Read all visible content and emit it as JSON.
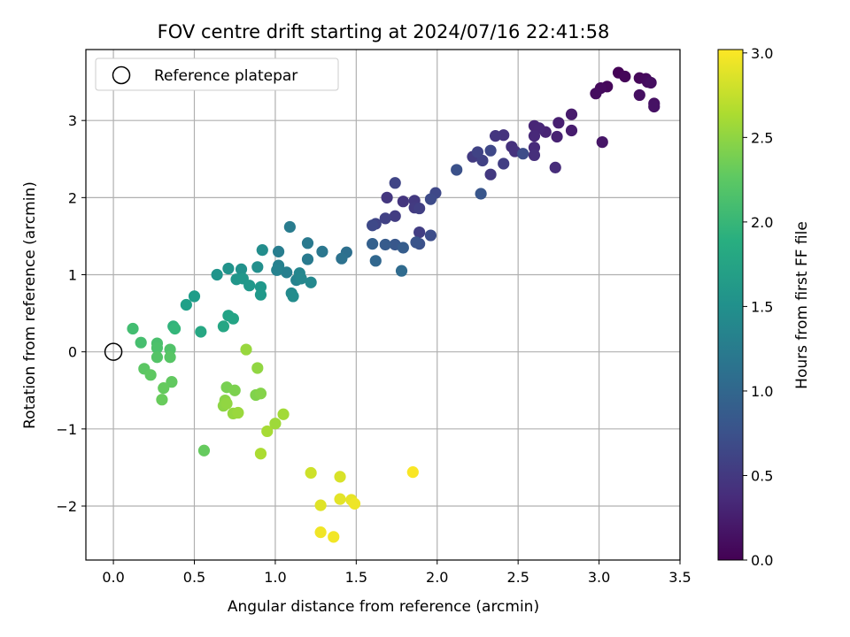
{
  "chart_data": {
    "type": "scatter",
    "title": "FOV centre drift starting at 2024/07/16 22:41:58",
    "xlabel": "Angular distance from reference (arcmin)",
    "ylabel": "Rotation from reference (arcmin)",
    "xlim": [
      -0.17,
      3.5
    ],
    "ylim": [
      -2.7,
      3.92
    ],
    "xticks": [
      0.0,
      0.5,
      1.0,
      1.5,
      2.0,
      2.5,
      3.0,
      3.5
    ],
    "xtick_labels": [
      "0.0",
      "0.5",
      "1.0",
      "1.5",
      "2.0",
      "2.5",
      "3.0",
      "3.5"
    ],
    "yticks": [
      -2,
      -1,
      0,
      1,
      2,
      3
    ],
    "ytick_labels": [
      "−2",
      "−1",
      "0",
      "1",
      "2",
      "3"
    ],
    "grid": true,
    "colormap": "viridis",
    "colorbar": {
      "label": "Hours from first FF file",
      "range": [
        0.0,
        3.02
      ],
      "ticks": [
        0.0,
        0.5,
        1.0,
        1.5,
        2.0,
        2.5,
        3.0
      ],
      "tick_labels": [
        "0.0",
        "0.5",
        "1.0",
        "1.5",
        "2.0",
        "2.5",
        "3.0"
      ]
    },
    "reference": {
      "name": "Reference platepar",
      "x": 0.0,
      "y": 0.0
    },
    "legend": {
      "placement": "top-left"
    },
    "points": [
      {
        "x": 3.12,
        "y": 3.62,
        "c": 0.02
      },
      {
        "x": 3.16,
        "y": 3.57,
        "c": 0.04
      },
      {
        "x": 3.05,
        "y": 3.44,
        "c": 0.06
      },
      {
        "x": 3.01,
        "y": 3.42,
        "c": 0.08
      },
      {
        "x": 2.98,
        "y": 3.35,
        "c": 0.1
      },
      {
        "x": 3.25,
        "y": 3.55,
        "c": 0.05
      },
      {
        "x": 3.29,
        "y": 3.54,
        "c": 0.07
      },
      {
        "x": 3.3,
        "y": 3.5,
        "c": 0.09
      },
      {
        "x": 3.32,
        "y": 3.49,
        "c": 0.11
      },
      {
        "x": 3.25,
        "y": 3.33,
        "c": 0.12
      },
      {
        "x": 3.34,
        "y": 3.22,
        "c": 0.14
      },
      {
        "x": 3.34,
        "y": 3.18,
        "c": 0.15
      },
      {
        "x": 3.02,
        "y": 2.72,
        "c": 0.18
      },
      {
        "x": 2.83,
        "y": 3.08,
        "c": 0.22
      },
      {
        "x": 2.83,
        "y": 2.87,
        "c": 0.24
      },
      {
        "x": 2.75,
        "y": 2.97,
        "c": 0.26
      },
      {
        "x": 2.74,
        "y": 2.79,
        "c": 0.28
      },
      {
        "x": 2.67,
        "y": 2.85,
        "c": 0.3
      },
      {
        "x": 2.6,
        "y": 2.93,
        "c": 0.32
      },
      {
        "x": 2.63,
        "y": 2.9,
        "c": 0.33
      },
      {
        "x": 2.6,
        "y": 2.8,
        "c": 0.35
      },
      {
        "x": 2.6,
        "y": 2.65,
        "c": 0.37
      },
      {
        "x": 2.73,
        "y": 2.39,
        "c": 0.38
      },
      {
        "x": 2.6,
        "y": 2.55,
        "c": 0.4
      },
      {
        "x": 2.46,
        "y": 2.66,
        "c": 0.42
      },
      {
        "x": 2.48,
        "y": 2.6,
        "c": 0.43
      },
      {
        "x": 2.41,
        "y": 2.81,
        "c": 0.45
      },
      {
        "x": 2.36,
        "y": 2.8,
        "c": 0.47
      },
      {
        "x": 2.33,
        "y": 2.3,
        "c": 0.5
      },
      {
        "x": 2.22,
        "y": 2.53,
        "c": 0.52
      },
      {
        "x": 2.41,
        "y": 2.44,
        "c": 0.55
      },
      {
        "x": 2.28,
        "y": 2.48,
        "c": 0.58
      },
      {
        "x": 2.25,
        "y": 2.59,
        "c": 0.6
      },
      {
        "x": 2.33,
        "y": 2.61,
        "c": 0.65
      },
      {
        "x": 2.53,
        "y": 2.57,
        "c": 0.7
      },
      {
        "x": 2.12,
        "y": 2.36,
        "c": 0.75
      },
      {
        "x": 2.27,
        "y": 2.05,
        "c": 0.8
      },
      {
        "x": 1.74,
        "y": 2.19,
        "c": 0.62
      },
      {
        "x": 1.69,
        "y": 2.0,
        "c": 0.48
      },
      {
        "x": 1.79,
        "y": 1.95,
        "c": 0.46
      },
      {
        "x": 1.86,
        "y": 1.96,
        "c": 0.5
      },
      {
        "x": 1.86,
        "y": 1.87,
        "c": 0.52
      },
      {
        "x": 1.89,
        "y": 1.86,
        "c": 0.56
      },
      {
        "x": 1.99,
        "y": 2.06,
        "c": 0.65
      },
      {
        "x": 1.96,
        "y": 1.98,
        "c": 0.68
      },
      {
        "x": 1.74,
        "y": 1.76,
        "c": 0.54
      },
      {
        "x": 1.68,
        "y": 1.73,
        "c": 0.58
      },
      {
        "x": 1.62,
        "y": 1.66,
        "c": 0.62
      },
      {
        "x": 1.6,
        "y": 1.64,
        "c": 0.66
      },
      {
        "x": 1.89,
        "y": 1.55,
        "c": 0.55
      },
      {
        "x": 1.96,
        "y": 1.51,
        "c": 0.7
      },
      {
        "x": 1.89,
        "y": 1.4,
        "c": 0.75
      },
      {
        "x": 1.87,
        "y": 1.42,
        "c": 0.78
      },
      {
        "x": 1.74,
        "y": 1.39,
        "c": 0.82
      },
      {
        "x": 1.68,
        "y": 1.39,
        "c": 0.86
      },
      {
        "x": 1.79,
        "y": 1.35,
        "c": 0.88
      },
      {
        "x": 1.6,
        "y": 1.4,
        "c": 0.92
      },
      {
        "x": 1.62,
        "y": 1.18,
        "c": 1.0
      },
      {
        "x": 1.78,
        "y": 1.05,
        "c": 1.05
      },
      {
        "x": 1.44,
        "y": 1.29,
        "c": 1.1
      },
      {
        "x": 1.41,
        "y": 1.21,
        "c": 1.13
      },
      {
        "x": 1.29,
        "y": 1.3,
        "c": 1.2
      },
      {
        "x": 1.2,
        "y": 1.41,
        "c": 1.22
      },
      {
        "x": 1.2,
        "y": 1.2,
        "c": 1.24
      },
      {
        "x": 1.09,
        "y": 1.62,
        "c": 1.26
      },
      {
        "x": 1.02,
        "y": 1.3,
        "c": 1.28
      },
      {
        "x": 1.07,
        "y": 1.03,
        "c": 1.3
      },
      {
        "x": 1.02,
        "y": 1.12,
        "c": 1.32
      },
      {
        "x": 1.01,
        "y": 1.06,
        "c": 1.34
      },
      {
        "x": 1.13,
        "y": 0.93,
        "c": 1.36
      },
      {
        "x": 1.15,
        "y": 1.02,
        "c": 1.38
      },
      {
        "x": 1.16,
        "y": 0.95,
        "c": 1.4
      },
      {
        "x": 1.22,
        "y": 0.9,
        "c": 1.42
      },
      {
        "x": 1.1,
        "y": 0.76,
        "c": 1.44
      },
      {
        "x": 1.11,
        "y": 0.72,
        "c": 1.46
      },
      {
        "x": 0.92,
        "y": 1.32,
        "c": 1.48
      },
      {
        "x": 0.89,
        "y": 1.1,
        "c": 1.5
      },
      {
        "x": 0.79,
        "y": 1.07,
        "c": 1.52
      },
      {
        "x": 0.71,
        "y": 1.08,
        "c": 1.54
      },
      {
        "x": 0.64,
        "y": 1.0,
        "c": 1.56
      },
      {
        "x": 0.76,
        "y": 0.94,
        "c": 1.58
      },
      {
        "x": 0.8,
        "y": 0.95,
        "c": 1.59
      },
      {
        "x": 0.84,
        "y": 0.86,
        "c": 1.6
      },
      {
        "x": 0.91,
        "y": 0.84,
        "c": 1.61
      },
      {
        "x": 0.91,
        "y": 0.74,
        "c": 1.62
      },
      {
        "x": 0.5,
        "y": 0.72,
        "c": 1.66
      },
      {
        "x": 0.45,
        "y": 0.61,
        "c": 1.7
      },
      {
        "x": 0.71,
        "y": 0.47,
        "c": 1.74
      },
      {
        "x": 0.74,
        "y": 0.43,
        "c": 1.76
      },
      {
        "x": 0.68,
        "y": 0.33,
        "c": 1.78
      },
      {
        "x": 0.54,
        "y": 0.26,
        "c": 1.8
      },
      {
        "x": 0.37,
        "y": 0.33,
        "c": 1.95
      },
      {
        "x": 0.38,
        "y": 0.3,
        "c": 2.0
      },
      {
        "x": 0.12,
        "y": 0.3,
        "c": 2.1
      },
      {
        "x": 0.17,
        "y": 0.12,
        "c": 2.12
      },
      {
        "x": 0.27,
        "y": 0.11,
        "c": 2.14
      },
      {
        "x": 0.27,
        "y": 0.05,
        "c": 2.16
      },
      {
        "x": 0.35,
        "y": 0.03,
        "c": 2.18
      },
      {
        "x": 0.27,
        "y": -0.07,
        "c": 2.2
      },
      {
        "x": 0.35,
        "y": -0.07,
        "c": 2.22
      },
      {
        "x": 0.19,
        "y": -0.22,
        "c": 2.24
      },
      {
        "x": 0.23,
        "y": -0.3,
        "c": 2.26
      },
      {
        "x": 0.36,
        "y": -0.39,
        "c": 2.28
      },
      {
        "x": 0.31,
        "y": -0.47,
        "c": 2.3
      },
      {
        "x": 0.3,
        "y": -0.62,
        "c": 2.32
      },
      {
        "x": 0.56,
        "y": -1.28,
        "c": 2.3
      },
      {
        "x": 0.82,
        "y": 0.03,
        "c": 2.55
      },
      {
        "x": 0.89,
        "y": -0.21,
        "c": 2.52
      },
      {
        "x": 0.7,
        "y": -0.46,
        "c": 2.4
      },
      {
        "x": 0.75,
        "y": -0.5,
        "c": 2.42
      },
      {
        "x": 0.88,
        "y": -0.56,
        "c": 2.44
      },
      {
        "x": 0.91,
        "y": -0.54,
        "c": 2.46
      },
      {
        "x": 0.69,
        "y": -0.63,
        "c": 2.48
      },
      {
        "x": 0.68,
        "y": -0.7,
        "c": 2.5
      },
      {
        "x": 0.7,
        "y": -0.67,
        "c": 2.52
      },
      {
        "x": 0.74,
        "y": -0.8,
        "c": 2.54
      },
      {
        "x": 0.77,
        "y": -0.79,
        "c": 2.56
      },
      {
        "x": 1.0,
        "y": -0.93,
        "c": 2.58
      },
      {
        "x": 1.05,
        "y": -0.81,
        "c": 2.6
      },
      {
        "x": 0.95,
        "y": -1.03,
        "c": 2.62
      },
      {
        "x": 0.91,
        "y": -1.32,
        "c": 2.64
      },
      {
        "x": 1.22,
        "y": -1.57,
        "c": 2.8
      },
      {
        "x": 1.4,
        "y": -1.62,
        "c": 2.85
      },
      {
        "x": 1.28,
        "y": -1.99,
        "c": 2.88
      },
      {
        "x": 1.4,
        "y": -1.91,
        "c": 2.9
      },
      {
        "x": 1.47,
        "y": -1.92,
        "c": 2.92
      },
      {
        "x": 1.49,
        "y": -1.97,
        "c": 2.95
      },
      {
        "x": 1.28,
        "y": -2.34,
        "c": 2.96
      },
      {
        "x": 1.36,
        "y": -2.4,
        "c": 2.97
      },
      {
        "x": 1.85,
        "y": -1.56,
        "c": 3.0
      }
    ]
  }
}
